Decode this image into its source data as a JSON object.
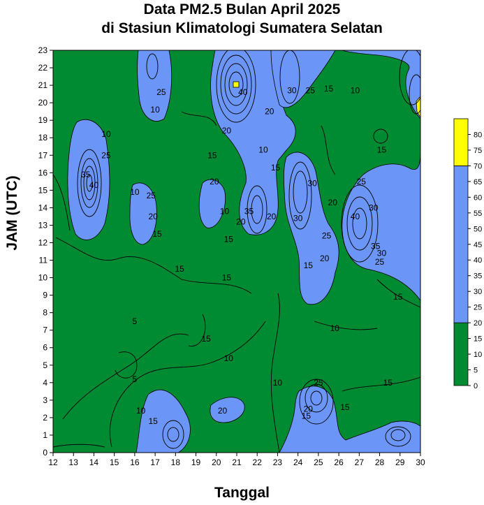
{
  "chart_data": {
    "type": "contour",
    "title": "Data PM2.5 Bulan April 2025",
    "subtitle": "di Stasiun Klimatologi Sumatera Selatan",
    "xlabel": "Tanggal",
    "ylabel": "JAM (UTC)",
    "x_ticks": [
      "12",
      "13",
      "14",
      "15",
      "16",
      "17",
      "18",
      "19",
      "20",
      "21",
      "22",
      "23",
      "24",
      "25",
      "26",
      "27",
      "28",
      "29",
      "30"
    ],
    "y_ticks": [
      "0",
      "1",
      "2",
      "3",
      "4",
      "5",
      "6",
      "7",
      "8",
      "9",
      "10",
      "11",
      "12",
      "13",
      "14",
      "15",
      "16",
      "17",
      "18",
      "19",
      "20",
      "21",
      "22",
      "23"
    ],
    "xlim": [
      12,
      30
    ],
    "ylim": [
      0,
      23
    ],
    "colorbar_ticks": [
      "0",
      "5",
      "10",
      "15",
      "20",
      "25",
      "30",
      "35",
      "40",
      "45",
      "50",
      "55",
      "60",
      "65",
      "70",
      "75",
      "80"
    ],
    "color_bands": [
      {
        "from": 0,
        "to": 20,
        "color": "#008a32"
      },
      {
        "from": 20,
        "to": 70,
        "color": "#6b96f7"
      },
      {
        "from": 70,
        "to": 85,
        "color": "#ffff00"
      }
    ],
    "contour_labels": [
      {
        "text": "35",
        "x": 13.6,
        "y": 15.9
      },
      {
        "text": "40",
        "x": 14.0,
        "y": 15.3
      },
      {
        "text": "10",
        "x": 14.6,
        "y": 18.2
      },
      {
        "text": "25",
        "x": 14.6,
        "y": 17.0
      },
      {
        "text": "10",
        "x": 16.0,
        "y": 14.9
      },
      {
        "text": "25",
        "x": 16.8,
        "y": 14.7
      },
      {
        "text": "20",
        "x": 16.9,
        "y": 13.5
      },
      {
        "text": "15",
        "x": 17.1,
        "y": 12.5
      },
      {
        "text": "10",
        "x": 17.0,
        "y": 19.6
      },
      {
        "text": "25",
        "x": 17.3,
        "y": 20.6
      },
      {
        "text": "15",
        "x": 18.2,
        "y": 10.5
      },
      {
        "text": "15",
        "x": 19.8,
        "y": 17.0
      },
      {
        "text": "20",
        "x": 19.9,
        "y": 15.5
      },
      {
        "text": "20",
        "x": 20.5,
        "y": 18.4
      },
      {
        "text": "10",
        "x": 20.4,
        "y": 13.8
      },
      {
        "text": "15",
        "x": 20.6,
        "y": 12.2
      },
      {
        "text": "15",
        "x": 20.5,
        "y": 10.0
      },
      {
        "text": "15",
        "x": 19.5,
        "y": 6.5
      },
      {
        "text": "10",
        "x": 20.6,
        "y": 5.4
      },
      {
        "text": "20",
        "x": 20.3,
        "y": 2.4
      },
      {
        "text": "5",
        "x": 16.0,
        "y": 7.5
      },
      {
        "text": "5",
        "x": 16.0,
        "y": 4.2
      },
      {
        "text": "10",
        "x": 16.3,
        "y": 2.4
      },
      {
        "text": "15",
        "x": 16.9,
        "y": 1.8
      },
      {
        "text": "40",
        "x": 21.3,
        "y": 20.6
      },
      {
        "text": "20",
        "x": 21.2,
        "y": 13.2
      },
      {
        "text": "35",
        "x": 21.6,
        "y": 13.8
      },
      {
        "text": "10",
        "x": 22.3,
        "y": 17.3
      },
      {
        "text": "15",
        "x": 22.9,
        "y": 16.3
      },
      {
        "text": "20",
        "x": 22.6,
        "y": 19.5
      },
      {
        "text": "20",
        "x": 22.7,
        "y": 13.5
      },
      {
        "text": "10",
        "x": 23.0,
        "y": 4.0
      },
      {
        "text": "30",
        "x": 23.7,
        "y": 20.7
      },
      {
        "text": "25",
        "x": 24.6,
        "y": 20.7
      },
      {
        "text": "15",
        "x": 25.5,
        "y": 20.8
      },
      {
        "text": "30",
        "x": 24.7,
        "y": 15.4
      },
      {
        "text": "30",
        "x": 24.0,
        "y": 13.4
      },
      {
        "text": "20",
        "x": 25.7,
        "y": 14.3
      },
      {
        "text": "25",
        "x": 25.4,
        "y": 12.4
      },
      {
        "text": "20",
        "x": 25.3,
        "y": 11.1
      },
      {
        "text": "15",
        "x": 24.5,
        "y": 10.7
      },
      {
        "text": "10",
        "x": 25.8,
        "y": 7.1
      },
      {
        "text": "25",
        "x": 25.0,
        "y": 4.0
      },
      {
        "text": "20",
        "x": 24.5,
        "y": 2.5
      },
      {
        "text": "15",
        "x": 24.4,
        "y": 2.1
      },
      {
        "text": "15",
        "x": 26.3,
        "y": 2.6
      },
      {
        "text": "10",
        "x": 26.8,
        "y": 20.7
      },
      {
        "text": "15",
        "x": 28.1,
        "y": 17.3
      },
      {
        "text": "25",
        "x": 27.1,
        "y": 15.5
      },
      {
        "text": "40",
        "x": 26.8,
        "y": 13.5
      },
      {
        "text": "30",
        "x": 27.7,
        "y": 14.0
      },
      {
        "text": "35",
        "x": 27.8,
        "y": 11.8
      },
      {
        "text": "30",
        "x": 28.1,
        "y": 11.4
      },
      {
        "text": "25",
        "x": 28.0,
        "y": 10.9
      },
      {
        "text": "15",
        "x": 28.9,
        "y": 8.9
      },
      {
        "text": "15",
        "x": 28.4,
        "y": 4.0
      }
    ]
  }
}
